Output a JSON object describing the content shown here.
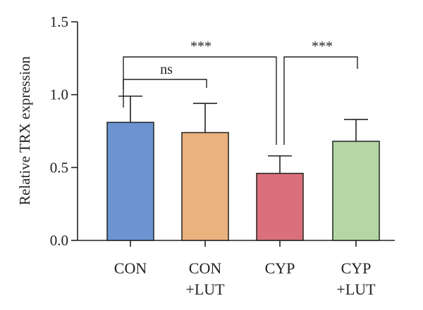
{
  "chart_data": {
    "type": "bar",
    "ylabel": "Relative TRX expression",
    "ylim": [
      0,
      1.5
    ],
    "yticks": [
      0.0,
      0.5,
      1.0,
      1.5
    ],
    "ytick_labels": [
      "0.0",
      "0.5",
      "1.0",
      "1.5"
    ],
    "grid": false,
    "categories": [
      {
        "line1": "CON",
        "line2": ""
      },
      {
        "line1": "CON",
        "line2": "+LUT"
      },
      {
        "line1": "CYP",
        "line2": ""
      },
      {
        "line1": "CYP",
        "line2": "+LUT"
      }
    ],
    "values": [
      0.81,
      0.74,
      0.46,
      0.68
    ],
    "errors": [
      0.18,
      0.2,
      0.12,
      0.15
    ],
    "colors": [
      "#6b94d1",
      "#eab27e",
      "#d9707b",
      "#b4d7a5"
    ],
    "significance": [
      {
        "from": 0,
        "to": 1,
        "label": "ns"
      },
      {
        "from": 0,
        "to": 2,
        "label": "***"
      },
      {
        "from": 2,
        "to": 3,
        "label": "***"
      }
    ]
  }
}
